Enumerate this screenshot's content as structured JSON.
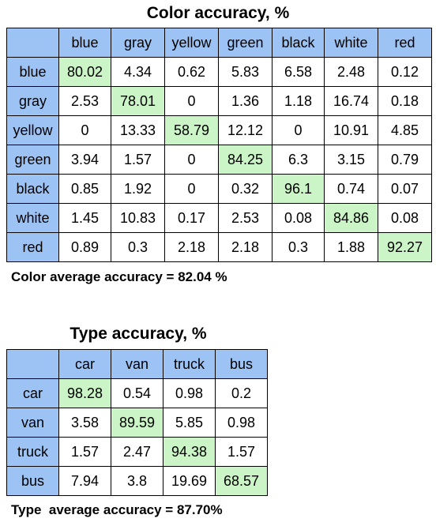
{
  "chart_data": [
    {
      "type": "table",
      "title": "Color accuracy, %",
      "columns": [
        "blue",
        "gray",
        "yellow",
        "green",
        "black",
        "white",
        "red"
      ],
      "rows": [
        "blue",
        "gray",
        "yellow",
        "green",
        "black",
        "white",
        "red"
      ],
      "values": [
        [
          "80.02",
          "4.34",
          "0.62",
          "5.83",
          "6.58",
          "2.48",
          "0.12"
        ],
        [
          "2.53",
          "78.01",
          "0",
          "1.36",
          "1.18",
          "16.74",
          "0.18"
        ],
        [
          "0",
          "13.33",
          "58.79",
          "12.12",
          "0",
          "10.91",
          "4.85"
        ],
        [
          "3.94",
          "1.57",
          "0",
          "84.25",
          "6.3",
          "3.15",
          "0.79"
        ],
        [
          "0.85",
          "1.92",
          "0",
          "0.32",
          "96.1",
          "0.74",
          "0.07"
        ],
        [
          "1.45",
          "10.83",
          "0.17",
          "2.53",
          "0.08",
          "84.86",
          "0.08"
        ],
        [
          "0.89",
          "0.3",
          "2.18",
          "2.18",
          "0.3",
          "1.88",
          "92.27"
        ]
      ],
      "footer": "Color average accuracy = 82.04 %"
    },
    {
      "type": "table",
      "title": "Type accuracy, %",
      "columns": [
        "car",
        "van",
        "truck",
        "bus"
      ],
      "rows": [
        "car",
        "van",
        "truck",
        "bus"
      ],
      "values": [
        [
          "98.28",
          "0.54",
          "0.98",
          "0.2"
        ],
        [
          "3.58",
          "89.59",
          "5.85",
          "0.98"
        ],
        [
          "1.57",
          "2.47",
          "94.38",
          "1.57"
        ],
        [
          "7.94",
          "3.8",
          "19.69",
          "68.57"
        ]
      ],
      "footer": "Type  average accuracy = 87.70%"
    }
  ],
  "colors": {
    "header_bg": "#9dc3f5",
    "diagonal_bg": "#ccf5c7",
    "cell_bg": "#ffffff"
  }
}
